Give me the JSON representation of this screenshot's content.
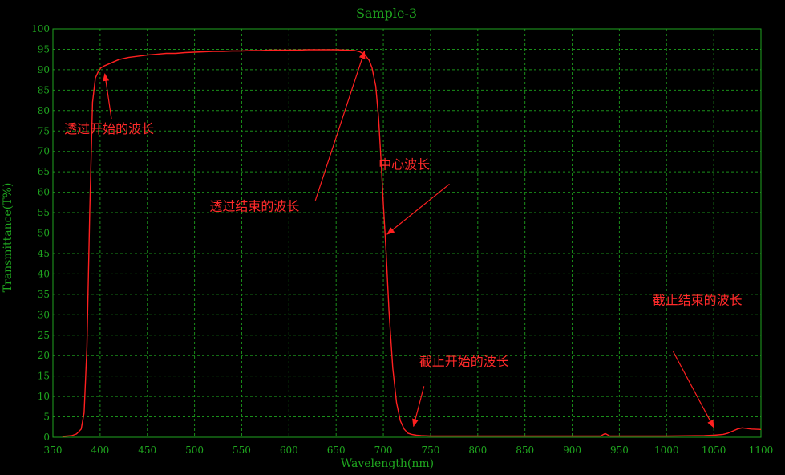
{
  "chart_data": {
    "type": "line",
    "title": "Sample-3",
    "xlabel": "Wavelength(nm)",
    "ylabel": "Transmittance(T%)",
    "xlim": [
      350,
      1100
    ],
    "ylim": [
      0,
      100
    ],
    "xticks": [
      350,
      400,
      450,
      500,
      550,
      600,
      650,
      700,
      750,
      800,
      850,
      900,
      950,
      1000,
      1050,
      1100
    ],
    "yticks": [
      0,
      5,
      10,
      15,
      20,
      25,
      30,
      35,
      40,
      45,
      50,
      55,
      60,
      65,
      70,
      75,
      80,
      85,
      90,
      95,
      100
    ],
    "grid": true,
    "colors": {
      "background": "#000000",
      "axis": "#1fa51f",
      "grid": "#1a8f1a",
      "line": "#ff2020",
      "annotation": "#ff2a2a"
    },
    "series": [
      {
        "x": [
          360,
          370,
          375,
          380,
          383,
          386,
          389,
          392,
          395,
          398,
          401,
          405,
          410,
          415,
          420,
          430,
          440,
          450,
          460,
          470,
          480,
          490,
          500,
          510,
          520,
          530,
          540,
          550,
          560,
          570,
          580,
          590,
          600,
          610,
          620,
          630,
          640,
          650,
          660,
          670,
          675,
          680,
          685,
          688,
          692,
          695,
          698,
          700,
          703,
          706,
          710,
          714,
          718,
          722,
          726,
          730,
          735,
          740,
          750,
          760,
          800,
          850,
          900,
          930,
          935,
          940,
          950,
          1000,
          1040,
          1050,
          1060,
          1065,
          1070,
          1075,
          1080,
          1090,
          1100
        ],
        "y": [
          0.2,
          0.4,
          0.8,
          2,
          6,
          22,
          55,
          82,
          88,
          89.5,
          90.5,
          91,
          91.5,
          92,
          92.5,
          93,
          93.3,
          93.6,
          93.8,
          94,
          94,
          94.2,
          94.3,
          94.4,
          94.5,
          94.5,
          94.6,
          94.6,
          94.7,
          94.7,
          94.8,
          94.8,
          94.8,
          94.8,
          94.9,
          94.9,
          94.9,
          94.9,
          94.8,
          94.7,
          94.4,
          93.8,
          92.3,
          90.5,
          86,
          78,
          66,
          57,
          45,
          31,
          17,
          8.5,
          4,
          2,
          1,
          0.7,
          0.5,
          0.4,
          0.3,
          0.3,
          0.3,
          0.3,
          0.3,
          0.3,
          0.9,
          0.3,
          0.3,
          0.3,
          0.4,
          0.5,
          0.7,
          1,
          1.5,
          2,
          2.3,
          2,
          1.9
        ]
      }
    ],
    "annotations": [
      {
        "text": "透过开始的波长",
        "x": 362,
        "y": 74.5,
        "arrow_from": [
          412,
          78
        ],
        "arrow_to": [
          405,
          89
        ]
      },
      {
        "text": "透过结束的波长",
        "x": 516,
        "y": 55.5,
        "arrow_from": [
          628,
          58
        ],
        "arrow_to": [
          680,
          94.5
        ]
      },
      {
        "text": "中心波长",
        "x": 695,
        "y": 65.7,
        "arrow_from": [
          770,
          62
        ],
        "arrow_to": [
          704,
          49.7
        ]
      },
      {
        "text": "截止开始的波长",
        "x": 738,
        "y": 17.5,
        "arrow_from": [
          743,
          12.5
        ],
        "arrow_to": [
          732,
          2.7
        ]
      },
      {
        "text": "截止结束的波长",
        "x": 985,
        "y": 32.5,
        "arrow_from": [
          1007,
          21
        ],
        "arrow_to": [
          1050,
          2.4
        ]
      }
    ]
  }
}
